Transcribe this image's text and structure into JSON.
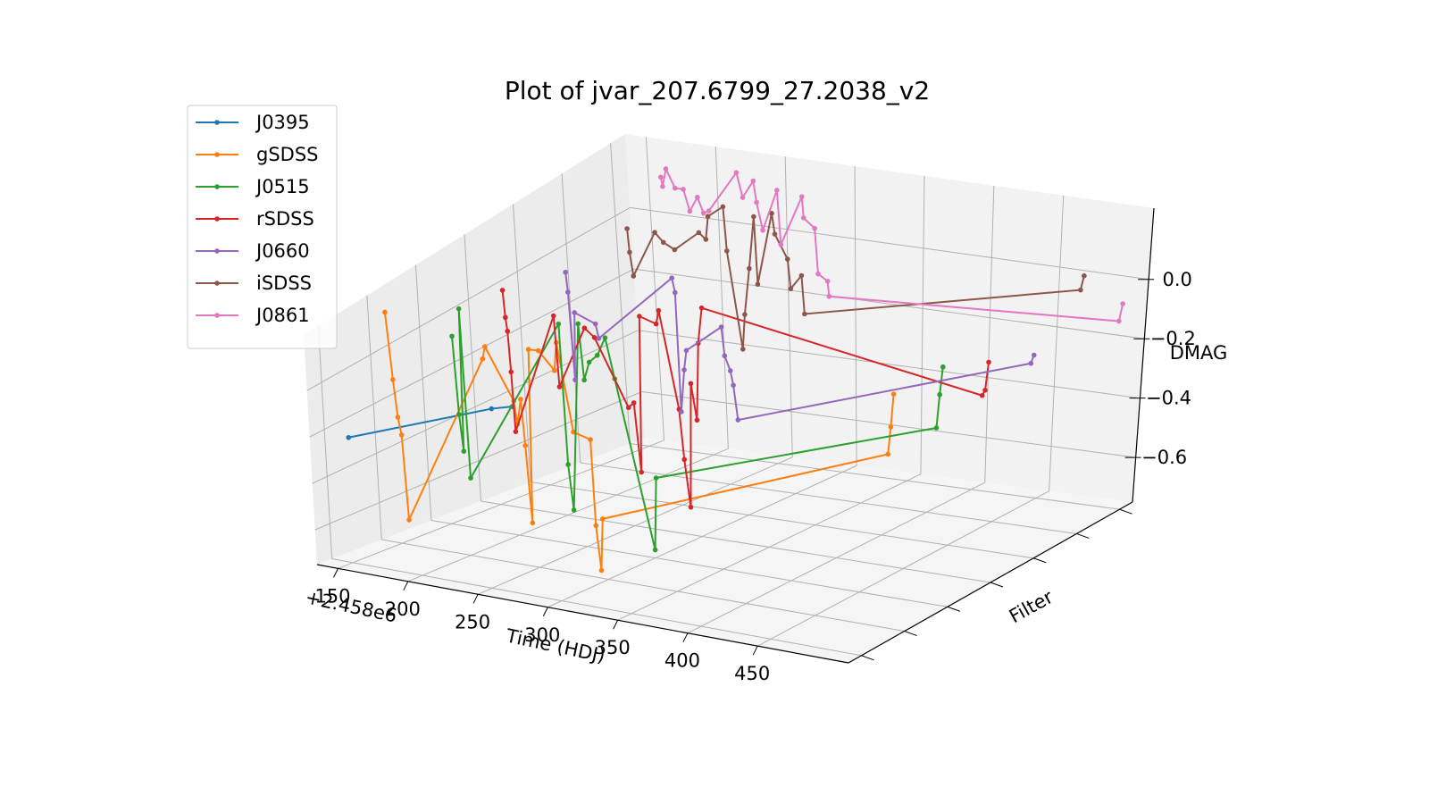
{
  "chart_data": {
    "type": "line3d",
    "title": "Plot of jvar_207.6799_27.2038_v2",
    "xlabel": "Time (HDJ)",
    "ylabel": "Filter",
    "zlabel": "DMAG",
    "x_offset_label": "+2.458e6",
    "xlim": [
      135,
      515
    ],
    "xticks": [
      150,
      200,
      250,
      300,
      350,
      400,
      450
    ],
    "zlim": [
      -0.75,
      0.24
    ],
    "zticks": [
      {
        "value": 0.0,
        "label": "0.0"
      },
      {
        "value": -0.2,
        "label": "−0.2"
      },
      {
        "value": -0.4,
        "label": "−0.4"
      },
      {
        "value": -0.6,
        "label": "−0.6"
      }
    ],
    "grid": true,
    "legend": "upper left",
    "series": [
      {
        "name": "J0395",
        "color": "#1f77b4",
        "x": [
          152,
          255,
          270
        ],
        "values": [
          -0.22,
          -0.02,
          0.0
        ]
      },
      {
        "name": "gSDSS",
        "color": "#ff7f0e",
        "x": [
          147,
          150,
          152,
          154,
          156,
          215,
          217,
          236,
          238,
          241,
          243,
          246,
          248,
          255,
          266,
          268,
          278,
          290,
          292,
          295,
          297,
          503,
          505,
          507
        ],
        "values": [
          0.18,
          -0.09,
          -0.24,
          -0.31,
          -0.65,
          0.04,
          0.09,
          -0.11,
          -0.2,
          -0.1,
          -0.28,
          -0.58,
          0.1,
          0.1,
          0.03,
          0.14,
          -0.2,
          -0.22,
          -0.55,
          -0.72,
          -0.52,
          -0.12,
          -0.02,
          0.1
        ]
      },
      {
        "name": "J0515",
        "color": "#2ca02c",
        "x": [
          158,
          160,
          162,
          164,
          166,
          235,
          238,
          241,
          249,
          252,
          256,
          262,
          268,
          274,
          300,
          302,
          505,
          507,
          509
        ],
        "values": [
          -0.02,
          -0.32,
          -0.46,
          0.09,
          -0.56,
          0.08,
          -0.45,
          -0.62,
          0.09,
          -0.12,
          -0.05,
          -0.02,
          0.05,
          -0.1,
          -0.72,
          -0.45,
          -0.12,
          0.0,
          0.1
        ]
      },
      {
        "name": "rSDSS",
        "color": "#d62728",
        "x": [
          160,
          161,
          162,
          163,
          164,
          196,
          198,
          218,
          225,
          248,
          252,
          256,
          258,
          270,
          272,
          285,
          288,
          292,
          294,
          298,
          300,
          303,
          505,
          507,
          509
        ],
        "values": [
          0.05,
          -0.05,
          -0.1,
          -0.25,
          -0.47,
          -0.02,
          -0.28,
          -0.05,
          -0.08,
          -0.32,
          -0.3,
          -0.55,
          0.02,
          0.0,
          0.05,
          -0.3,
          -0.48,
          -0.65,
          -0.2,
          -0.33,
          -0.05,
          0.08,
          -0.1,
          -0.08,
          0.02
        ]
      },
      {
        "name": "J0660",
        "color": "#9467bd",
        "x": [
          170,
          171,
          173,
          175,
          190,
          192,
          247,
          249,
          251,
          254,
          256,
          282,
          284,
          288,
          290,
          293,
          507,
          509
        ],
        "values": [
          0.02,
          -0.05,
          -0.36,
          -0.12,
          -0.15,
          -0.2,
          0.05,
          0.0,
          -0.42,
          -0.27,
          -0.2,
          -0.1,
          -0.2,
          -0.25,
          -0.3,
          -0.42,
          -0.08,
          -0.05
        ]
      },
      {
        "name": "iSDSS",
        "color": "#8c564b",
        "x": [
          180,
          181,
          183,
          200,
          206,
          214,
          232,
          237,
          239,
          250,
          252,
          262,
          264,
          268,
          272,
          274,
          285,
          287,
          296,
          298,
          306,
          308,
          508,
          510
        ],
        "values": [
          0.08,
          0.0,
          -0.08,
          0.08,
          0.05,
          0.03,
          0.1,
          0.08,
          0.16,
          0.2,
          0.05,
          -0.28,
          -0.16,
          0.0,
          0.18,
          -0.05,
          0.2,
          0.13,
          0.05,
          -0.05,
          0.0,
          -0.13,
          0.08,
          0.13
        ]
      },
      {
        "name": "J0861",
        "color": "#e377c2",
        "x": [
          170,
          171,
          174,
          180,
          186,
          190,
          196,
          200,
          204,
          225,
          229,
          237,
          239,
          243,
          254,
          256,
          272,
          273,
          281,
          283,
          290,
          291,
          505,
          507
        ],
        "values": [
          0.15,
          0.12,
          0.18,
          0.12,
          0.12,
          0.05,
          0.1,
          0.05,
          0.06,
          0.2,
          0.12,
          0.18,
          0.11,
          0.02,
          0.16,
          -0.02,
          0.15,
          0.08,
          0.05,
          -0.1,
          -0.12,
          -0.17,
          -0.12,
          -0.06
        ]
      }
    ]
  }
}
